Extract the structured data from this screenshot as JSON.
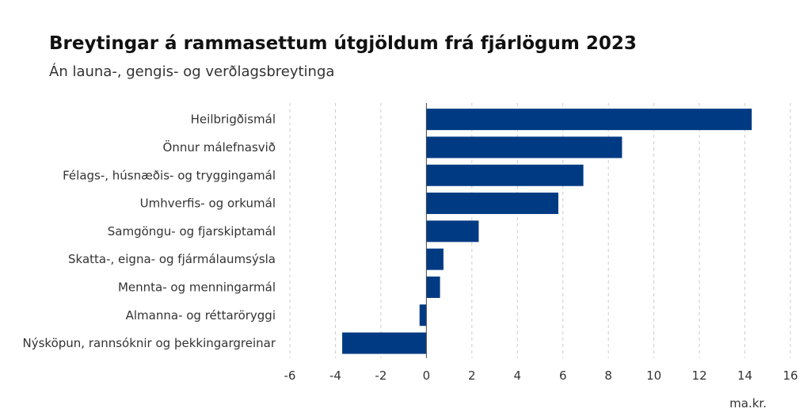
{
  "chart_data": {
    "type": "bar",
    "orientation": "horizontal",
    "title": "Breytingar á rammasettum útgjöldum frá fjárlögum 2023",
    "subtitle": "Án launa-, gengis- og verðlagsbreytinga",
    "unit": "ma.kr.",
    "categories": [
      "Heilbrigðismál",
      "Önnur málefnasvið",
      "Félags-, húsnæðis- og tryggingamál",
      "Umhverfis- og orkumál",
      "Samgöngu- og fjarskiptamál",
      "Skatta-, eigna- og fjármálaumsýsla",
      "Mennta- og menningarmál",
      "Almanna- og réttaröryggi",
      "Nýsköpun, rannsóknir og þekkingargreinar"
    ],
    "values": [
      14.3,
      8.6,
      6.9,
      5.8,
      2.3,
      0.75,
      0.6,
      -0.3,
      -3.7
    ],
    "xlim": [
      -6,
      16
    ],
    "xticks": [
      -6,
      -4,
      -2,
      0,
      2,
      4,
      6,
      8,
      10,
      12,
      14,
      16
    ],
    "grid": true,
    "bar_color": "#003a83"
  }
}
